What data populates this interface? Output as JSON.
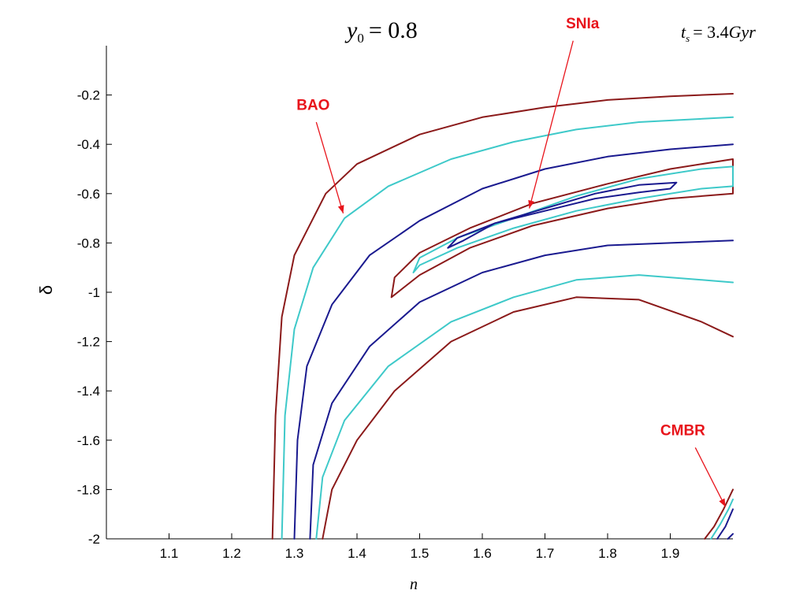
{
  "chart_data": {
    "type": "contour",
    "xlabel": "n",
    "ylabel": "δ",
    "xlim": [
      1.0,
      2.0
    ],
    "ylim": [
      -2.0,
      0.0
    ],
    "x_ticks": [
      1.1,
      1.2,
      1.3,
      1.4,
      1.5,
      1.6,
      1.7,
      1.8,
      1.9
    ],
    "x_tick_labels": [
      "1.1",
      "1.2",
      "1.3",
      "1.4",
      "1.5",
      "1.6",
      "1.7",
      "1.8",
      "1.9"
    ],
    "y_ticks": [
      -0.2,
      -0.4,
      -0.6,
      -0.8,
      -1.0,
      -1.2,
      -1.4,
      -1.6,
      -1.8,
      -2.0
    ],
    "y_tick_labels": [
      "-0.2",
      "-0.4",
      "-0.6",
      "-0.8",
      "-1",
      "-1.2",
      "-1.4",
      "-1.6",
      "-1.8",
      "-2"
    ],
    "grid": false,
    "params": {
      "y0_symbol": "y",
      "y0_subscript": "0",
      "y0_value": "= 0.8",
      "ts_symbol": "t",
      "ts_subscript": "s",
      "ts_equals": "= 3.4",
      "ts_unit": "Gyr"
    },
    "colors": {
      "outer": "#8b1a1a",
      "middle": "#3ec9c9",
      "inner": "#1a1a8f",
      "annotation": "#e8141b"
    },
    "series": [
      {
        "level": "outer",
        "points": [
          [
            1.265,
            -2.0
          ],
          [
            1.27,
            -1.5
          ],
          [
            1.28,
            -1.1
          ],
          [
            1.3,
            -0.85
          ],
          [
            1.35,
            -0.6
          ],
          [
            1.4,
            -0.48
          ],
          [
            1.5,
            -0.36
          ],
          [
            1.6,
            -0.29
          ],
          [
            1.7,
            -0.25
          ],
          [
            1.8,
            -0.22
          ],
          [
            1.9,
            -0.205
          ],
          [
            2.0,
            -0.195
          ]
        ]
      },
      {
        "level": "middle",
        "points": [
          [
            1.28,
            -2.0
          ],
          [
            1.285,
            -1.5
          ],
          [
            1.3,
            -1.15
          ],
          [
            1.33,
            -0.9
          ],
          [
            1.38,
            -0.7
          ],
          [
            1.45,
            -0.57
          ],
          [
            1.55,
            -0.46
          ],
          [
            1.65,
            -0.39
          ],
          [
            1.75,
            -0.34
          ],
          [
            1.85,
            -0.31
          ],
          [
            2.0,
            -0.29
          ]
        ]
      },
      {
        "level": "inner",
        "points": [
          [
            1.3,
            -2.0
          ],
          [
            1.305,
            -1.6
          ],
          [
            1.32,
            -1.3
          ],
          [
            1.36,
            -1.05
          ],
          [
            1.42,
            -0.85
          ],
          [
            1.5,
            -0.71
          ],
          [
            1.6,
            -0.58
          ],
          [
            1.7,
            -0.5
          ],
          [
            1.8,
            -0.45
          ],
          [
            1.9,
            -0.42
          ],
          [
            2.0,
            -0.4
          ]
        ]
      },
      {
        "level": "inner",
        "points": [
          [
            1.325,
            -2.0
          ],
          [
            1.33,
            -1.7
          ],
          [
            1.36,
            -1.45
          ],
          [
            1.42,
            -1.22
          ],
          [
            1.5,
            -1.04
          ],
          [
            1.6,
            -0.92
          ],
          [
            1.7,
            -0.85
          ],
          [
            1.8,
            -0.81
          ],
          [
            1.9,
            -0.8
          ],
          [
            2.0,
            -0.79
          ]
        ]
      },
      {
        "level": "middle",
        "points": [
          [
            1.335,
            -2.0
          ],
          [
            1.345,
            -1.75
          ],
          [
            1.38,
            -1.52
          ],
          [
            1.45,
            -1.3
          ],
          [
            1.55,
            -1.12
          ],
          [
            1.65,
            -1.02
          ],
          [
            1.75,
            -0.95
          ],
          [
            1.85,
            -0.93
          ],
          [
            1.95,
            -0.95
          ],
          [
            2.0,
            -0.96
          ]
        ]
      },
      {
        "level": "outer",
        "points": [
          [
            1.345,
            -2.0
          ],
          [
            1.36,
            -1.8
          ],
          [
            1.4,
            -1.6
          ],
          [
            1.46,
            -1.4
          ],
          [
            1.55,
            -1.2
          ],
          [
            1.65,
            -1.08
          ],
          [
            1.75,
            -1.02
          ],
          [
            1.85,
            -1.03
          ],
          [
            1.95,
            -1.12
          ],
          [
            2.0,
            -1.18
          ]
        ]
      },
      {
        "level": "outer",
        "points": [
          [
            1.455,
            -1.02
          ],
          [
            1.46,
            -0.94
          ],
          [
            1.5,
            -0.84
          ],
          [
            1.58,
            -0.74
          ],
          [
            1.68,
            -0.64
          ],
          [
            1.8,
            -0.56
          ],
          [
            1.9,
            -0.5
          ],
          [
            2.0,
            -0.46
          ],
          [
            2.0,
            -0.6
          ],
          [
            1.9,
            -0.62
          ],
          [
            1.8,
            -0.66
          ],
          [
            1.68,
            -0.73
          ],
          [
            1.58,
            -0.82
          ],
          [
            1.5,
            -0.93
          ],
          [
            1.455,
            -1.02
          ]
        ]
      },
      {
        "level": "middle",
        "points": [
          [
            1.49,
            -0.92
          ],
          [
            1.5,
            -0.86
          ],
          [
            1.56,
            -0.78
          ],
          [
            1.65,
            -0.7
          ],
          [
            1.75,
            -0.61
          ],
          [
            1.85,
            -0.54
          ],
          [
            1.95,
            -0.5
          ],
          [
            2.0,
            -0.49
          ],
          [
            2.0,
            -0.57
          ],
          [
            1.95,
            -0.58
          ],
          [
            1.85,
            -0.62
          ],
          [
            1.75,
            -0.67
          ],
          [
            1.65,
            -0.74
          ],
          [
            1.56,
            -0.82
          ],
          [
            1.5,
            -0.89
          ],
          [
            1.49,
            -0.92
          ]
        ]
      },
      {
        "level": "inner",
        "points": [
          [
            1.545,
            -0.82
          ],
          [
            1.56,
            -0.78
          ],
          [
            1.62,
            -0.72
          ],
          [
            1.7,
            -0.66
          ],
          [
            1.78,
            -0.6
          ],
          [
            1.85,
            -0.565
          ],
          [
            1.91,
            -0.555
          ],
          [
            1.9,
            -0.58
          ],
          [
            1.85,
            -0.595
          ],
          [
            1.78,
            -0.62
          ],
          [
            1.7,
            -0.67
          ],
          [
            1.62,
            -0.72
          ],
          [
            1.57,
            -0.79
          ],
          [
            1.545,
            -0.82
          ]
        ]
      },
      {
        "level": "outer",
        "points": [
          [
            1.955,
            -2.0
          ],
          [
            1.97,
            -1.95
          ],
          [
            1.985,
            -1.88
          ],
          [
            2.0,
            -1.8
          ]
        ]
      },
      {
        "level": "middle",
        "points": [
          [
            1.965,
            -2.0
          ],
          [
            1.98,
            -1.94
          ],
          [
            1.993,
            -1.88
          ],
          [
            2.0,
            -1.84
          ]
        ]
      },
      {
        "level": "inner",
        "points": [
          [
            1.975,
            -2.0
          ],
          [
            1.988,
            -1.95
          ],
          [
            2.0,
            -1.88
          ]
        ]
      },
      {
        "level": "inner",
        "points": [
          [
            1.992,
            -2.0
          ],
          [
            2.0,
            -1.98
          ]
        ]
      }
    ],
    "annotations": [
      {
        "text": "BAO",
        "label_at": [
          1.33,
          -0.26
        ],
        "arrow_from": [
          1.335,
          -0.31
        ],
        "arrow_to": [
          1.378,
          -0.68
        ]
      },
      {
        "text": "SNIa",
        "label_at": [
          1.76,
          0.07
        ],
        "arrow_from": [
          1.745,
          0.02
        ],
        "arrow_to": [
          1.675,
          -0.66
        ]
      },
      {
        "text": "CMBR",
        "label_at": [
          1.92,
          -1.58
        ],
        "arrow_from": [
          1.94,
          -1.63
        ],
        "arrow_to": [
          1.988,
          -1.87
        ]
      }
    ]
  }
}
